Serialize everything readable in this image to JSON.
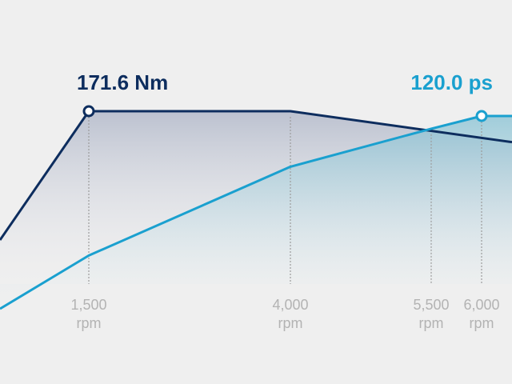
{
  "chart_data": {
    "type": "line",
    "x_unit": "rpm",
    "x_ticks": [
      1500,
      4000,
      5500,
      6000
    ],
    "tick_labels": [
      {
        "value": "1,500",
        "unit": "rpm"
      },
      {
        "value": "4,000",
        "unit": "rpm"
      },
      {
        "value": "5,500",
        "unit": "rpm"
      },
      {
        "value": "6,000",
        "unit": "rpm"
      }
    ],
    "series": [
      {
        "key": "torque",
        "color": "#0d2d5e",
        "x": [
          1000,
          1500,
          4000,
          6400
        ],
        "y": [
          115,
          171.6,
          171.6,
          158
        ],
        "peak_x": 1500,
        "peak_label": "171.6 Nm"
      },
      {
        "key": "power",
        "color": "#1aa0cf",
        "x": [
          1000,
          1500,
          4000,
          5500,
          6000,
          6400
        ],
        "y": [
          44,
          65,
          100,
          115,
          120.0,
          120.0
        ],
        "peak_x": 6000,
        "peak_label": "120.0 ps"
      }
    ]
  }
}
